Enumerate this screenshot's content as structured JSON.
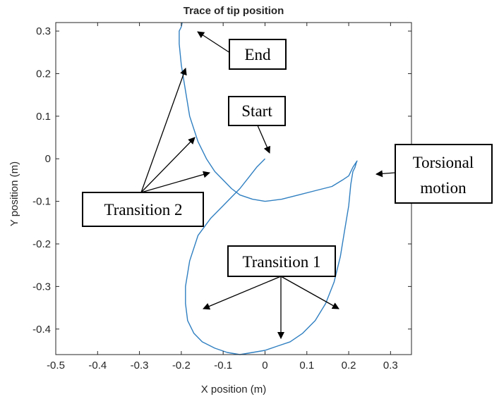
{
  "chart_data": {
    "type": "line",
    "title": "Trace of tip position",
    "xlabel": "X position (m)",
    "ylabel": "Y position (m)",
    "xlim": [
      -0.5,
      0.35
    ],
    "ylim": [
      -0.46,
      0.32
    ],
    "xticks": [
      "-0.5",
      "-0.4",
      "-0.3",
      "-0.2",
      "-0.1",
      "0",
      "0.1",
      "0.2",
      "0.3"
    ],
    "yticks": [
      "0.3",
      "0.2",
      "0.1",
      "0",
      "-0.1",
      "-0.2",
      "-0.3",
      "-0.4"
    ],
    "grid": false,
    "series": [
      {
        "color": "#2f7fc1",
        "x": [
          0.0,
          -0.02,
          -0.04,
          -0.06,
          -0.08,
          -0.1,
          -0.13,
          -0.16,
          -0.18,
          -0.19,
          -0.19,
          -0.185,
          -0.17,
          -0.15,
          -0.12,
          -0.09,
          -0.06,
          -0.03,
          0.0,
          0.03,
          0.06,
          0.09,
          0.12,
          0.145,
          0.165,
          0.18,
          0.19,
          0.2,
          0.205,
          0.21,
          0.215,
          0.218,
          0.22,
          0.21,
          0.2,
          0.185,
          0.16,
          0.12,
          0.08,
          0.04,
          0.0,
          -0.03,
          -0.06,
          -0.08,
          -0.1,
          -0.12,
          -0.14,
          -0.16,
          -0.18,
          -0.19,
          -0.2,
          -0.205,
          -0.205,
          -0.2,
          -0.198
        ],
        "y": [
          -0.0,
          -0.02,
          -0.045,
          -0.07,
          -0.09,
          -0.11,
          -0.14,
          -0.18,
          -0.24,
          -0.3,
          -0.34,
          -0.38,
          -0.41,
          -0.43,
          -0.445,
          -0.455,
          -0.46,
          -0.455,
          -0.45,
          -0.44,
          -0.43,
          -0.41,
          -0.38,
          -0.34,
          -0.29,
          -0.23,
          -0.17,
          -0.11,
          -0.06,
          -0.03,
          -0.02,
          -0.01,
          -0.005,
          -0.02,
          -0.04,
          -0.05,
          -0.065,
          -0.075,
          -0.085,
          -0.095,
          -0.1,
          -0.095,
          -0.085,
          -0.07,
          -0.05,
          -0.03,
          0.0,
          0.04,
          0.1,
          0.16,
          0.22,
          0.27,
          0.3,
          0.31,
          0.32
        ]
      }
    ]
  },
  "annotations": {
    "end": "End",
    "start": "Start",
    "torsional_line1": "Torsional",
    "torsional_line2": "motion",
    "transition2": "Transition 2",
    "transition1": "Transition 1"
  }
}
